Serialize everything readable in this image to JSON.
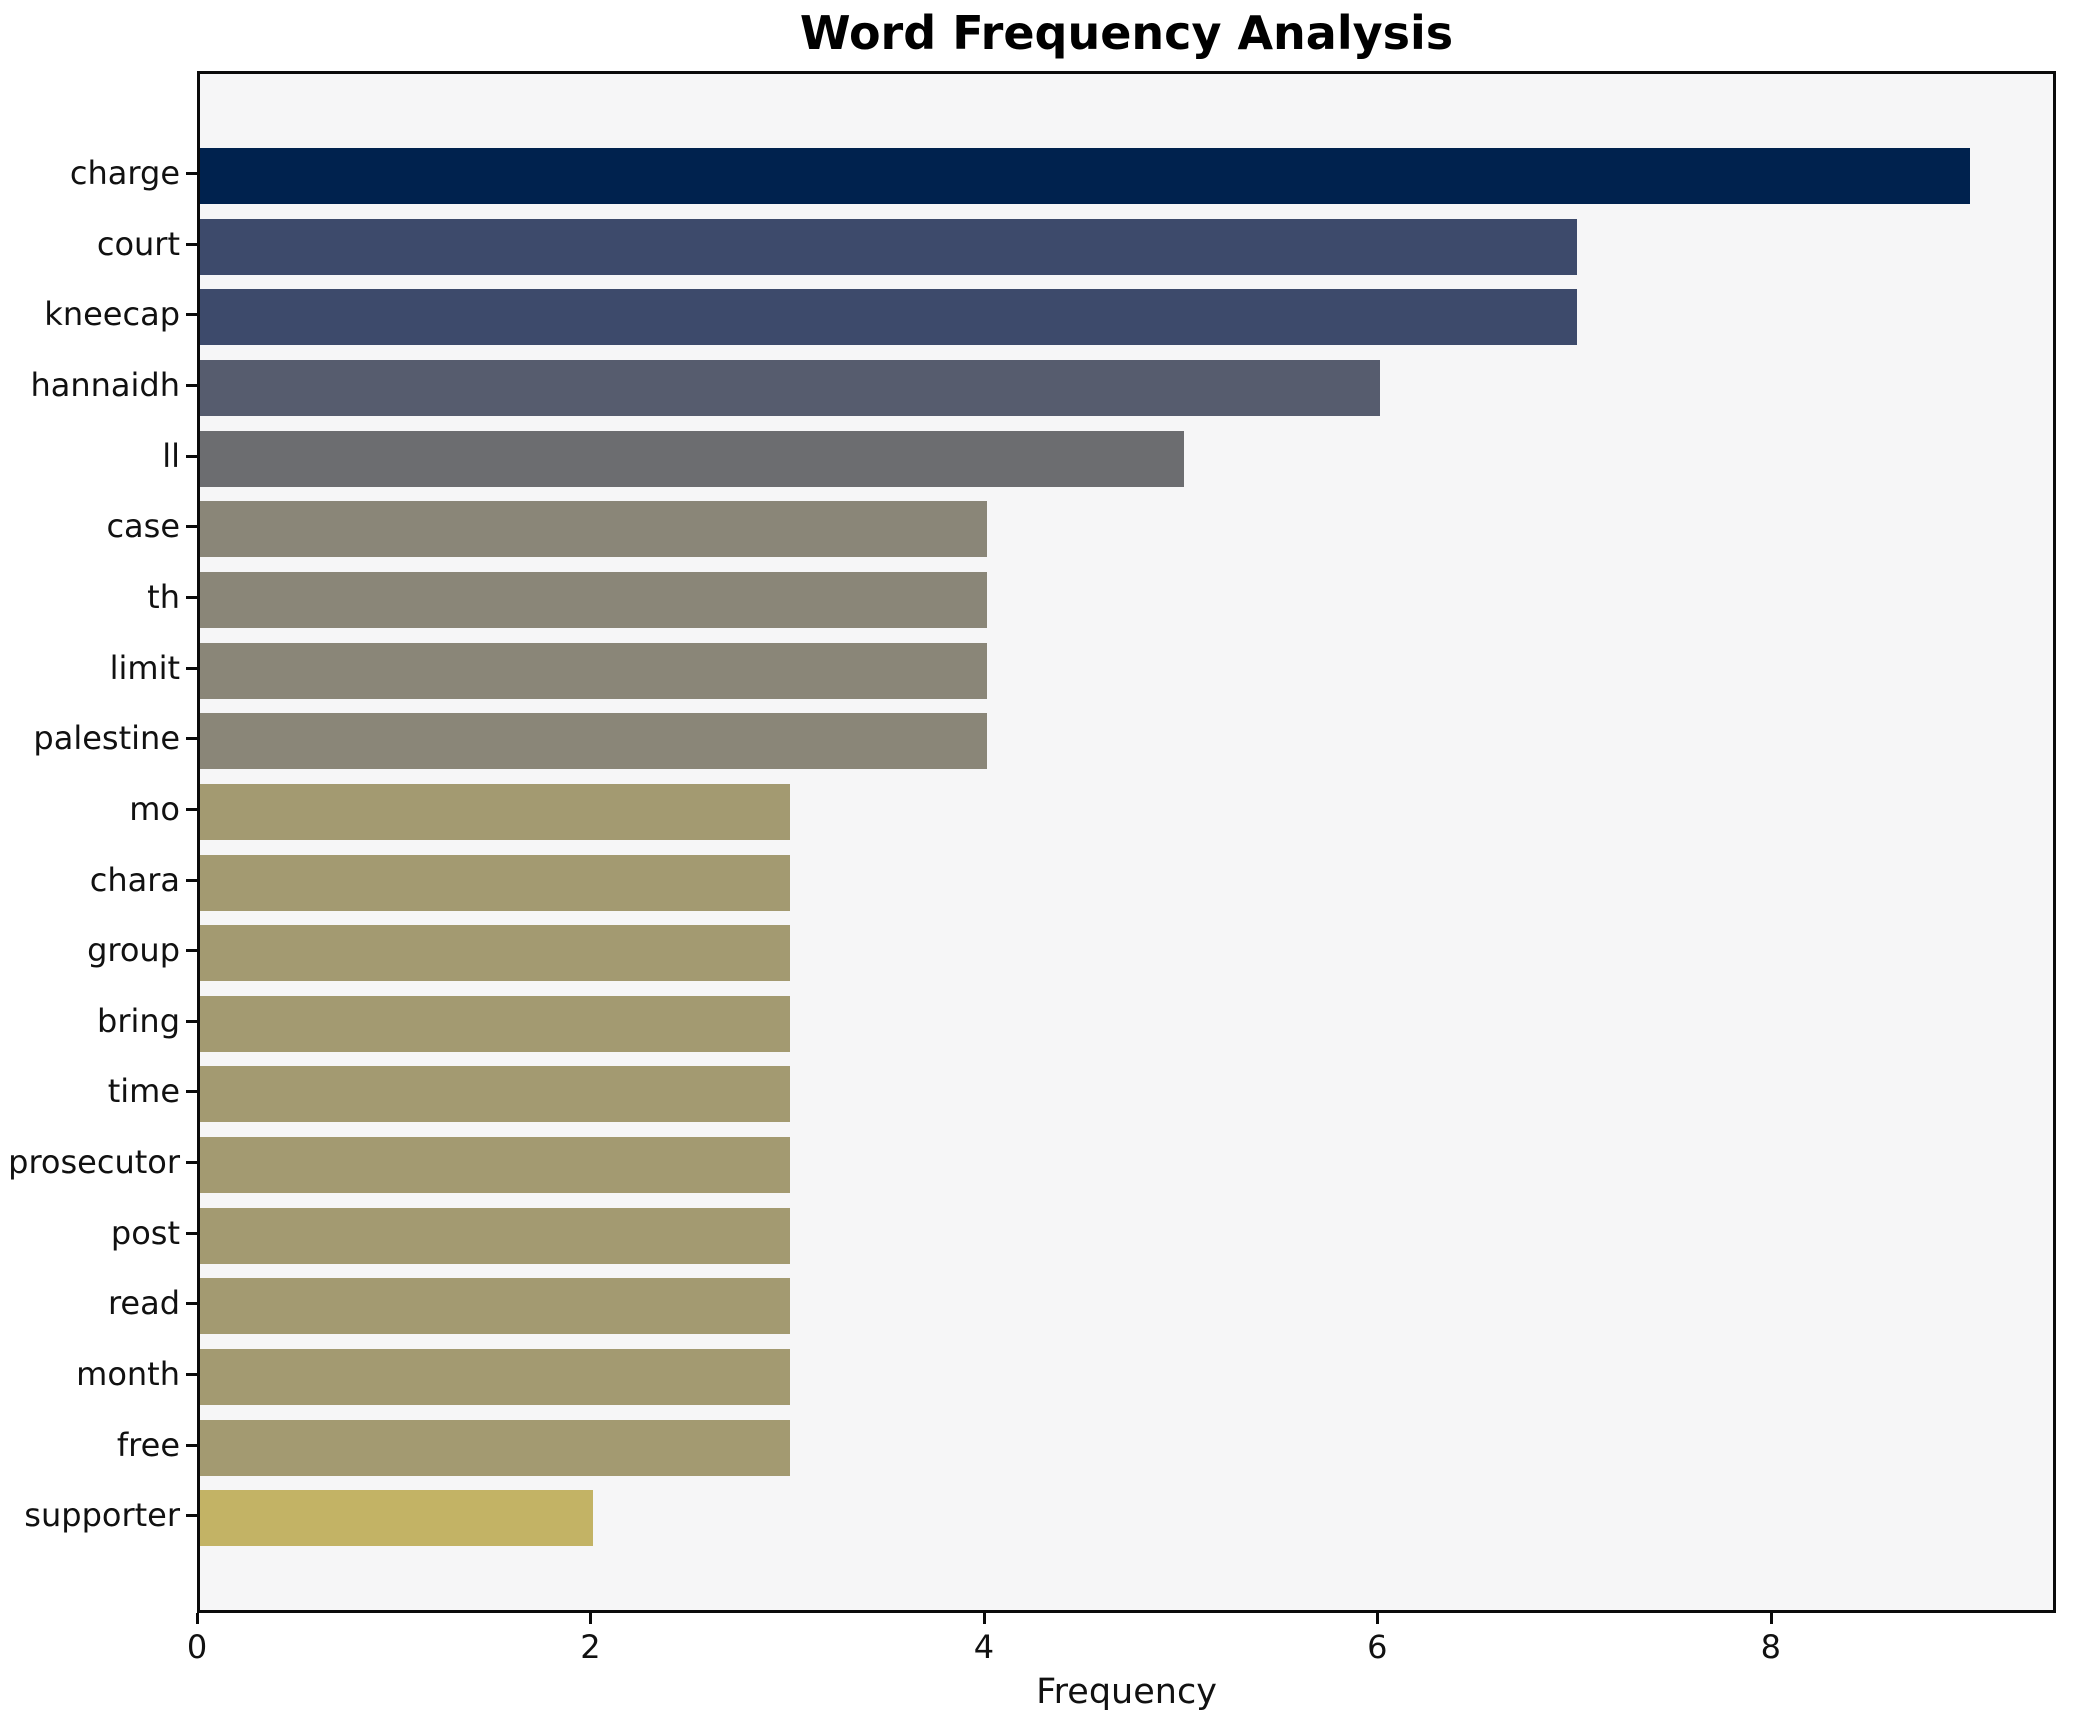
{
  "title": "Word Frequency Analysis",
  "xlabel": "Frequency",
  "chart_data": {
    "type": "bar",
    "orientation": "horizontal",
    "title": "Word Frequency Analysis",
    "xlabel": "Frequency",
    "ylabel": "",
    "grid": false,
    "legend": false,
    "colormap": "cividis",
    "plot_background": "#f6f6f7",
    "figure_background": "#ffffff",
    "spine_color": "#0b0b0b",
    "xlim": [
      0,
      9.45
    ],
    "xticks": [
      0,
      2,
      4,
      6,
      8
    ],
    "categories": [
      "charge",
      "court",
      "kneecap",
      "hannaidh",
      "ll",
      "case",
      "th",
      "limit",
      "palestine",
      "mo",
      "chara",
      "group",
      "bring",
      "time",
      "prosecutor",
      "post",
      "read",
      "month",
      "free",
      "supporter"
    ],
    "values": [
      9,
      7,
      7,
      6,
      5,
      4,
      4,
      4,
      4,
      3,
      3,
      3,
      3,
      3,
      3,
      3,
      3,
      3,
      3,
      2
    ],
    "bar_colors": [
      "#00224e",
      "#3d4a6b",
      "#3d4a6b",
      "#565c6e",
      "#6c6d70",
      "#8a8678",
      "#8a8678",
      "#8a8678",
      "#8a8678",
      "#a39a71",
      "#a39a71",
      "#a39a71",
      "#a39a71",
      "#a39a71",
      "#a39a71",
      "#a39a71",
      "#a39a71",
      "#a39a71",
      "#a39a71",
      "#c3b365"
    ]
  }
}
